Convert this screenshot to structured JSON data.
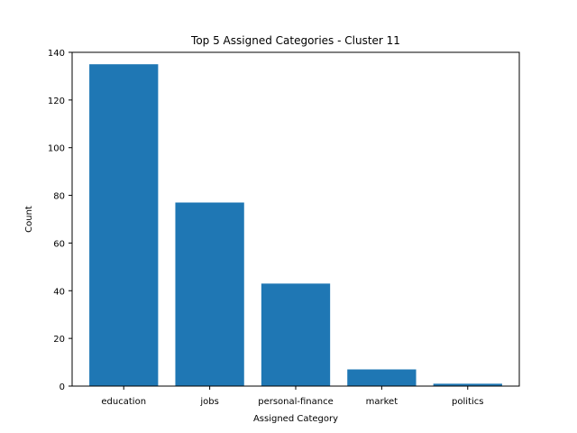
{
  "chart_data": {
    "type": "bar",
    "title": "Top 5 Assigned Categories - Cluster 11",
    "xlabel": "Assigned Category",
    "ylabel": "Count",
    "categories": [
      "education",
      "jobs",
      "personal-finance",
      "market",
      "politics"
    ],
    "values": [
      135,
      77,
      43,
      7,
      1
    ],
    "ylim": [
      0,
      140
    ],
    "yticks": [
      0,
      20,
      40,
      60,
      80,
      100,
      120,
      140
    ],
    "bar_color": "#1f77b4",
    "grid": false,
    "legend": "none"
  }
}
